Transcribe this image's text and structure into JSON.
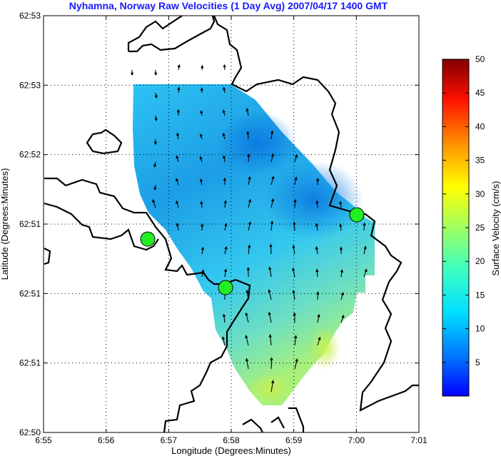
{
  "title": "Nyhamna, Norway Raw Velocities (1 Day Avg) 2007/04/17 1400 GMT",
  "xlabel": "Longitude (Degrees:Minutes)",
  "ylabel": "Latitude (Degrees:Minutes)",
  "x_ticks": [
    "6:55",
    "6:56",
    "6:57",
    "6:58",
    "6:59",
    "7:00",
    "7:01"
  ],
  "y_ticks": [
    "62:50",
    "62:51",
    "62:51",
    "62:51",
    "62:52",
    "62:53",
    "62:53"
  ],
  "colorbar": {
    "label": "Surface Velocity (cm/s)",
    "min": 0,
    "max": 50,
    "ticks": [
      "5",
      "10",
      "15",
      "20",
      "25",
      "30",
      "35",
      "40",
      "45",
      "50"
    ],
    "colormap": "jet"
  },
  "chart_data": {
    "type": "heatmap",
    "title": "Nyhamna, Norway Raw Velocities (1 Day Avg) 2007/04/17 1400 GMT",
    "xlabel": "Longitude (Degrees:Minutes)",
    "ylabel": "Latitude (Degrees:Minutes)",
    "grid": true,
    "colorbar_range": [
      0,
      50
    ],
    "value_range_shown": [
      3,
      22
    ],
    "sites": [
      {
        "lon": "6:56.7",
        "lat": "62:51.3"
      },
      {
        "lon": "6:57.9",
        "lat": "62:50.9"
      },
      {
        "lon": "7:00.0",
        "lat": "62:51.5"
      }
    ]
  }
}
